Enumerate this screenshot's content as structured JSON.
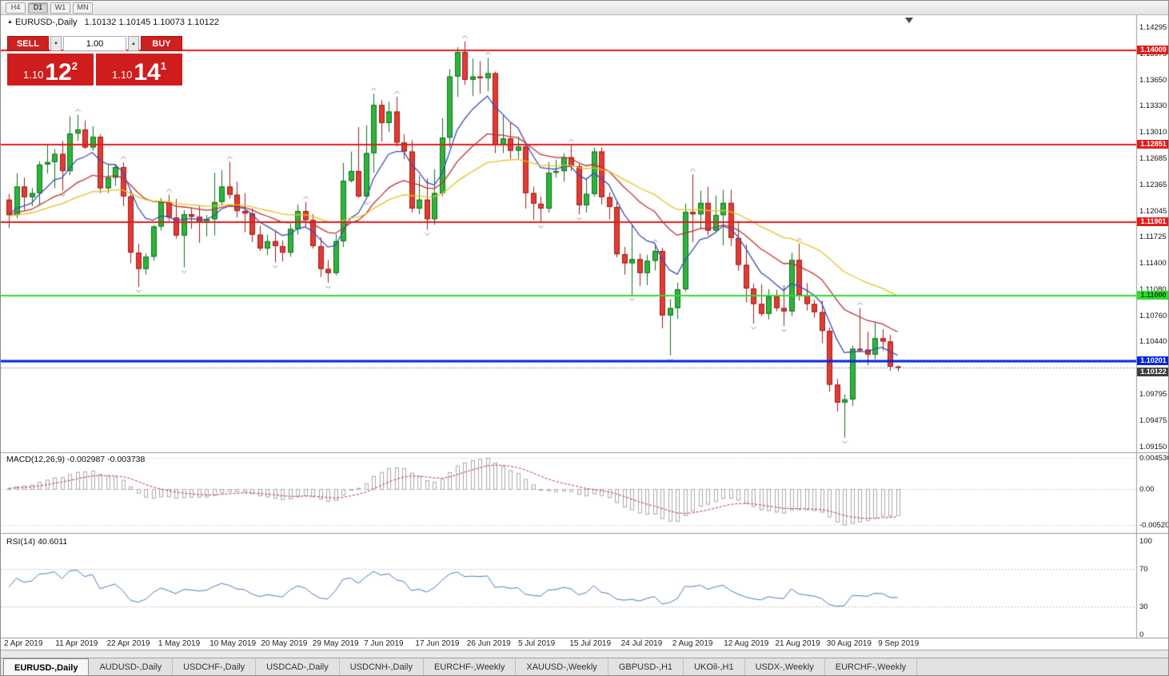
{
  "toolbar": {
    "timeframes": [
      "H4",
      "D1",
      "W1",
      "MN"
    ],
    "active_timeframe": "D1"
  },
  "icons": {
    "collapse": "▲",
    "lot_down": "▼",
    "lot_up": "▲"
  },
  "symbol_header": {
    "symbol": "EURUSD-,Daily",
    "ohlc": "1.10132 1.10145 1.10073 1.10122"
  },
  "trade_panel": {
    "sell_label": "SELL",
    "buy_label": "BUY",
    "lot_size": "1.00",
    "bid": {
      "big": "1.10",
      "pips": "12",
      "pt": "2"
    },
    "ask": {
      "big": "1.10",
      "pips": "14",
      "pt": "1"
    }
  },
  "colors": {
    "up_fill": "#2eb43b",
    "up_stroke": "#146f1f",
    "down_fill": "#e23b32",
    "down_stroke": "#9c1f1a",
    "divider": "#9a9a9a",
    "grid_dotted": "#c2c2c2",
    "fractal": "#8f8f8f",
    "panel_red": "#cf1d1d"
  },
  "chart_data": {
    "type": "candlestick",
    "title": "EURUSD-,Daily",
    "ylim": [
      1.0915,
      1.14295
    ],
    "price_axis_ticks": [
      "1.14295",
      "1.13975",
      "1.13650",
      "1.13330",
      "1.13010",
      "1.12685",
      "1.12365",
      "1.12045",
      "1.11725",
      "1.11400",
      "1.11080",
      "1.10760",
      "1.10440",
      "1.09795",
      "1.09475",
      "1.09150"
    ],
    "x_axis_dates": [
      "2 Apr 2019",
      "11 Apr 2019",
      "22 Apr 2019",
      "1 May 2019",
      "10 May 2019",
      "20 May 2019",
      "29 May 2019",
      "7 Jun 2019",
      "17 Jun 2019",
      "26 Jun 2019",
      "5 Jul 2019",
      "15 Jul 2019",
      "24 Jul 2019",
      "2 Aug 2019",
      "12 Aug 2019",
      "21 Aug 2019",
      "30 Aug 2019",
      "9 Sep 2019"
    ],
    "candles": [
      [
        1.1218,
        1.1225,
        1.1183,
        1.1199
      ],
      [
        1.1199,
        1.125,
        1.1195,
        1.1234
      ],
      [
        1.1234,
        1.1245,
        1.1205,
        1.1221
      ],
      [
        1.1221,
        1.1232,
        1.121,
        1.1226
      ],
      [
        1.1226,
        1.1265,
        1.1212,
        1.1261
      ],
      [
        1.1261,
        1.1285,
        1.125,
        1.1264
      ],
      [
        1.1264,
        1.128,
        1.1232,
        1.1274
      ],
      [
        1.1274,
        1.129,
        1.1229,
        1.1253
      ],
      [
        1.1253,
        1.132,
        1.1248,
        1.1299
      ],
      [
        1.1299,
        1.1322,
        1.129,
        1.1304
      ],
      [
        1.1304,
        1.1315,
        1.128,
        1.1282
      ],
      [
        1.1282,
        1.1308,
        1.1278,
        1.1295
      ],
      [
        1.1295,
        1.1298,
        1.1226,
        1.1232
      ],
      [
        1.1232,
        1.1262,
        1.1226,
        1.1245
      ],
      [
        1.1245,
        1.1262,
        1.1235,
        1.1258
      ],
      [
        1.1258,
        1.1264,
        1.121,
        1.1222
      ],
      [
        1.1222,
        1.123,
        1.114,
        1.1153
      ],
      [
        1.1153,
        1.1164,
        1.1111,
        1.1133
      ],
      [
        1.1133,
        1.1152,
        1.1126,
        1.1148
      ],
      [
        1.1148,
        1.1187,
        1.1143,
        1.1185
      ],
      [
        1.1185,
        1.122,
        1.118,
        1.1215
      ],
      [
        1.1215,
        1.1224,
        1.1192,
        1.1196
      ],
      [
        1.1196,
        1.1219,
        1.117,
        1.1174
      ],
      [
        1.1174,
        1.1205,
        1.1135,
        1.12
      ],
      [
        1.12,
        1.1208,
        1.1182,
        1.1197
      ],
      [
        1.1197,
        1.121,
        1.1165,
        1.119
      ],
      [
        1.119,
        1.1199,
        1.1173,
        1.1194
      ],
      [
        1.1194,
        1.1251,
        1.1174,
        1.1215
      ],
      [
        1.1215,
        1.1254,
        1.1211,
        1.1234
      ],
      [
        1.1234,
        1.1264,
        1.1219,
        1.1224
      ],
      [
        1.1224,
        1.124,
        1.1196,
        1.1204
      ],
      [
        1.1204,
        1.1226,
        1.1178,
        1.1201
      ],
      [
        1.1201,
        1.1207,
        1.1166,
        1.1175
      ],
      [
        1.1175,
        1.1186,
        1.1155,
        1.1158
      ],
      [
        1.1158,
        1.1175,
        1.115,
        1.1167
      ],
      [
        1.1167,
        1.118,
        1.1141,
        1.1161
      ],
      [
        1.1161,
        1.1168,
        1.1142,
        1.1153
      ],
      [
        1.1153,
        1.1188,
        1.1148,
        1.1182
      ],
      [
        1.1182,
        1.1212,
        1.1175,
        1.1204
      ],
      [
        1.1204,
        1.1215,
        1.1184,
        1.1193
      ],
      [
        1.1193,
        1.12,
        1.1158,
        1.1161
      ],
      [
        1.1161,
        1.1172,
        1.1123,
        1.1133
      ],
      [
        1.1133,
        1.1144,
        1.1116,
        1.1128
      ],
      [
        1.1128,
        1.1176,
        1.1125,
        1.1167
      ],
      [
        1.1167,
        1.1263,
        1.116,
        1.1241
      ],
      [
        1.1241,
        1.1277,
        1.1239,
        1.1253
      ],
      [
        1.1253,
        1.1307,
        1.122,
        1.1222
      ],
      [
        1.1222,
        1.1309,
        1.1219,
        1.1275
      ],
      [
        1.1275,
        1.1348,
        1.1251,
        1.1334
      ],
      [
        1.1334,
        1.134,
        1.1289,
        1.1312
      ],
      [
        1.1312,
        1.1338,
        1.1301,
        1.1326
      ],
      [
        1.1326,
        1.1344,
        1.1283,
        1.1288
      ],
      [
        1.1288,
        1.1298,
        1.1268,
        1.1277
      ],
      [
        1.1277,
        1.1291,
        1.1202,
        1.1207
      ],
      [
        1.1207,
        1.1248,
        1.12,
        1.1218
      ],
      [
        1.1218,
        1.1244,
        1.1181,
        1.1194
      ],
      [
        1.1194,
        1.1255,
        1.1187,
        1.1226
      ],
      [
        1.1226,
        1.1318,
        1.1222,
        1.1294
      ],
      [
        1.1294,
        1.1378,
        1.1282,
        1.1369
      ],
      [
        1.1369,
        1.1405,
        1.1344,
        1.1399
      ],
      [
        1.1399,
        1.1412,
        1.1359,
        1.1365
      ],
      [
        1.1365,
        1.1391,
        1.1345,
        1.1369
      ],
      [
        1.1369,
        1.1388,
        1.1348,
        1.1367
      ],
      [
        1.1367,
        1.1392,
        1.1351,
        1.1373
      ],
      [
        1.1373,
        1.1375,
        1.1275,
        1.1285
      ],
      [
        1.1285,
        1.1322,
        1.1275,
        1.1293
      ],
      [
        1.1293,
        1.1312,
        1.1268,
        1.1278
      ],
      [
        1.1278,
        1.1295,
        1.1268,
        1.1283
      ],
      [
        1.1283,
        1.1288,
        1.1207,
        1.1226
      ],
      [
        1.1226,
        1.1234,
        1.1193,
        1.1213
      ],
      [
        1.1213,
        1.1222,
        1.119,
        1.1207
      ],
      [
        1.1207,
        1.1264,
        1.1202,
        1.1251
      ],
      [
        1.1251,
        1.1267,
        1.1245,
        1.1253
      ],
      [
        1.1253,
        1.1275,
        1.124,
        1.127
      ],
      [
        1.127,
        1.1285,
        1.1253,
        1.1259
      ],
      [
        1.1259,
        1.1262,
        1.12,
        1.1211
      ],
      [
        1.1211,
        1.1243,
        1.1202,
        1.1225
      ],
      [
        1.1225,
        1.1282,
        1.1222,
        1.1277
      ],
      [
        1.1277,
        1.1282,
        1.1212,
        1.1221
      ],
      [
        1.1221,
        1.1227,
        1.1194,
        1.1209
      ],
      [
        1.1209,
        1.1215,
        1.1147,
        1.1151
      ],
      [
        1.1151,
        1.116,
        1.1126,
        1.114
      ],
      [
        1.114,
        1.1187,
        1.1101,
        1.1145
      ],
      [
        1.1145,
        1.1152,
        1.1112,
        1.1128
      ],
      [
        1.1128,
        1.115,
        1.1113,
        1.1143
      ],
      [
        1.1143,
        1.1162,
        1.1131,
        1.1155
      ],
      [
        1.1155,
        1.1159,
        1.106,
        1.1076
      ],
      [
        1.1076,
        1.1096,
        1.1027,
        1.1085
      ],
      [
        1.1085,
        1.1116,
        1.1072,
        1.1108
      ],
      [
        1.1108,
        1.1213,
        1.1105,
        1.1203
      ],
      [
        1.1203,
        1.1249,
        1.1166,
        1.12
      ],
      [
        1.12,
        1.1229,
        1.1183,
        1.1214
      ],
      [
        1.1214,
        1.1234,
        1.1174,
        1.118
      ],
      [
        1.118,
        1.1223,
        1.1178,
        1.1199
      ],
      [
        1.1199,
        1.123,
        1.1162,
        1.1214
      ],
      [
        1.1214,
        1.123,
        1.1161,
        1.1171
      ],
      [
        1.1171,
        1.1192,
        1.1131,
        1.1138
      ],
      [
        1.1138,
        1.1163,
        1.1092,
        1.1109
      ],
      [
        1.1109,
        1.1115,
        1.1066,
        1.109
      ],
      [
        1.109,
        1.1114,
        1.1075,
        1.1078
      ],
      [
        1.1078,
        1.1108,
        1.1071,
        1.1099
      ],
      [
        1.1099,
        1.1107,
        1.1081,
        1.1085
      ],
      [
        1.1085,
        1.1113,
        1.1063,
        1.1081
      ],
      [
        1.1081,
        1.1153,
        1.1075,
        1.1144
      ],
      [
        1.1144,
        1.1164,
        1.1094,
        1.1101
      ],
      [
        1.1101,
        1.1116,
        1.1082,
        1.109
      ],
      [
        1.109,
        1.1095,
        1.1073,
        1.108
      ],
      [
        1.108,
        1.1094,
        1.1042,
        1.1057
      ],
      [
        1.1057,
        1.1061,
        1.0982,
        1.0991
      ],
      [
        1.0991,
        1.0998,
        1.0958,
        1.0969
      ],
      [
        1.0969,
        1.0979,
        1.0926,
        1.0973
      ],
      [
        1.0973,
        1.1039,
        1.0965,
        1.1035
      ],
      [
        1.1035,
        1.1085,
        1.1031,
        1.1034
      ],
      [
        1.1034,
        1.1056,
        1.1015,
        1.1028
      ],
      [
        1.1028,
        1.1067,
        1.1022,
        1.1048
      ],
      [
        1.1048,
        1.1059,
        1.1033,
        1.1044
      ],
      [
        1.1044,
        1.1052,
        1.1008,
        1.1013
      ],
      [
        1.10132,
        1.10145,
        1.10073,
        1.10122
      ]
    ],
    "moving_averages": [
      {
        "name": "fast-ma",
        "period": 8,
        "color": "#3a4fbb"
      },
      {
        "name": "medium-ma",
        "period": 20,
        "color": "#c03030"
      },
      {
        "name": "slow-ma",
        "period": 40,
        "color": "#e5c31e"
      }
    ],
    "levels": [
      {
        "value": 1.14009,
        "label": "1.14009",
        "line_color": "#e31b1b",
        "label_bg": "#e31b1b",
        "label_fg": "#ffffff",
        "width": 2
      },
      {
        "value": 1.12851,
        "label": "1.12851",
        "line_color": "#e31b1b",
        "label_bg": "#e31b1b",
        "label_fg": "#ffffff",
        "width": 2
      },
      {
        "value": 1.11901,
        "label": "1.11901",
        "line_color": "#e31b1b",
        "label_bg": "#e31b1b",
        "label_fg": "#ffffff",
        "width": 2
      },
      {
        "value": 1.11,
        "label": "1.11000",
        "line_color": "#2be02b",
        "label_bg": "#2be02b",
        "label_fg": "#073807",
        "width": 2
      },
      {
        "value": 1.10201,
        "label": "1.10201",
        "line_color": "#0026dd",
        "label_bg": "#0026dd",
        "label_fg": "#ffffff",
        "width": 3
      },
      {
        "value": 1.10122,
        "label": "1.10122",
        "line_color": "#8c8c8c",
        "label_bg": "#3f3f3f",
        "label_fg": "#ffffff",
        "width": 1,
        "dashed": true,
        "is_current_price": true
      }
    ],
    "sub_indicators": [
      {
        "name": "MACD",
        "label": "MACD(12,26,9) -0.002987 -0.003738",
        "params": [
          12,
          26,
          9
        ],
        "values_text": [
          "-0.002987",
          "-0.003738"
        ],
        "axis": [
          "0.004536",
          "0.00",
          "-0.005205"
        ],
        "histogram_color": "#a9a9a9",
        "signal_color": "#c03333"
      },
      {
        "name": "RSI",
        "label": "RSI(14) 40.6011",
        "period": 14,
        "value_text": "40.6011",
        "axis": [
          "100",
          "70",
          "30",
          "0"
        ],
        "levels": [
          70,
          30
        ],
        "line_color": "#4a7ebb"
      }
    ]
  },
  "tabs": [
    {
      "label": "EURUSD-,Daily",
      "active": true
    },
    {
      "label": "AUDUSD-,Daily",
      "active": false
    },
    {
      "label": "USDCHF-,Daily",
      "active": false
    },
    {
      "label": "USDCAD-,Daily",
      "active": false
    },
    {
      "label": "USDCNH-,Daily",
      "active": false
    },
    {
      "label": "EURCHF-,Weekly",
      "active": false
    },
    {
      "label": "XAUUSD-,Weekly",
      "active": false
    },
    {
      "label": "GBPUSD-,H1",
      "active": false
    },
    {
      "label": "UKOil-,H1",
      "active": false
    },
    {
      "label": "USDX-,Weekly",
      "active": false
    },
    {
      "label": "EURCHF-,Weekly",
      "active": false
    }
  ]
}
